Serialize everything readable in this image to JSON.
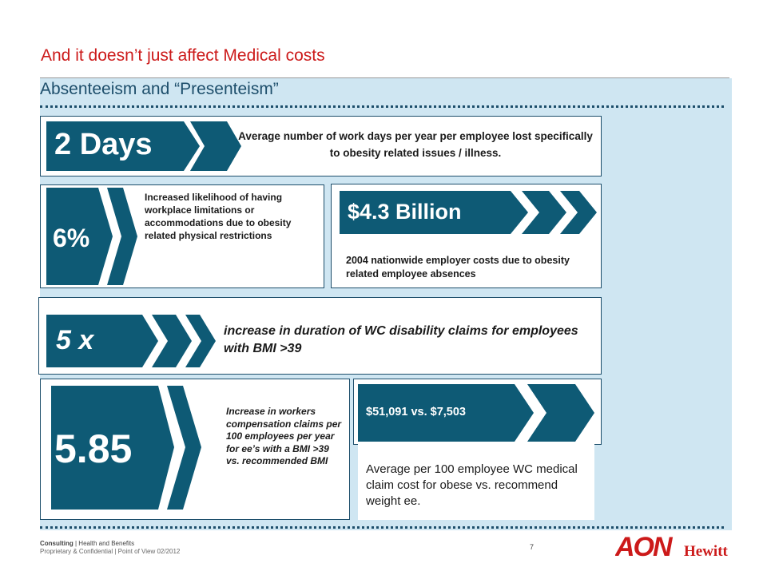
{
  "slide": {
    "title": "And it doesn’t just affect Medical costs",
    "subtitle": "Absenteeism and “Presenteism”"
  },
  "cards": {
    "days": {
      "value": "2 Days",
      "text": "Average number of work days per year per employee lost specifically to obesity related issues / illness."
    },
    "six": {
      "value": "6%",
      "text": "Increased likelihood of having workplace limitations or accommodations due to obesity related physical restrictions"
    },
    "billion": {
      "value": "$4.3 Billion",
      "text": "2004 nationwide employer costs due to obesity related employee absences"
    },
    "five": {
      "value": "5 x",
      "text": "increase in duration of WC disability claims for employees with BMI >39"
    },
    "five85": {
      "value": "5.85",
      "text": "Increase in workers compensation claims per 100 employees per year for ee’s with a BMI >39 vs. recommended BMI"
    },
    "cost": {
      "value": "$51,091 vs. $7,503",
      "text": "Average per 100 employee WC medical claim cost for obese vs. recommend weight ee."
    }
  },
  "footer": {
    "line1_bold": "Consulting",
    "line1_rest": " | Health and Benefits",
    "line2": "Proprietary & Confidential | Point of View 02/2012",
    "page": "7"
  },
  "logo": {
    "brand": "AON",
    "sub": "Hewitt",
    "color": "#cc1a1a"
  },
  "colors": {
    "accent_red": "#cc1a1a",
    "teal": "#0e5a75",
    "panel": "#cfe6f2",
    "navy": "#1d4e6b"
  }
}
